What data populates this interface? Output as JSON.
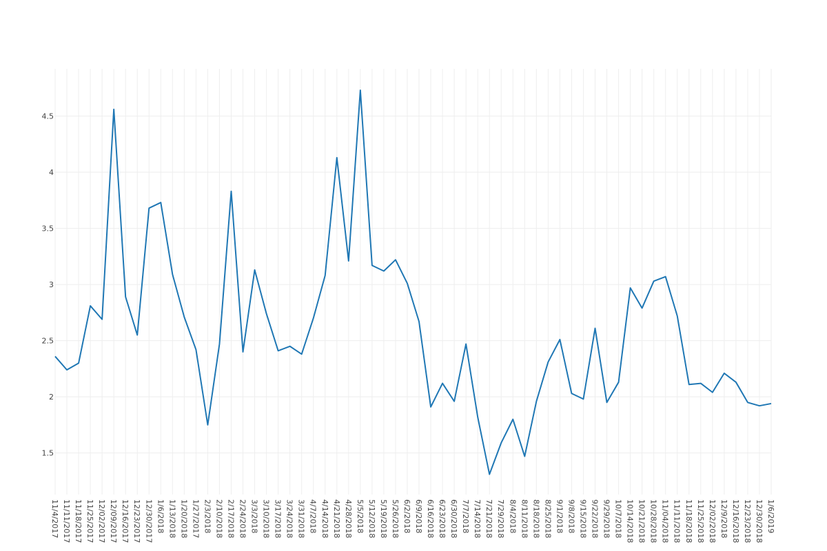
{
  "chart_data": {
    "type": "line",
    "categories": [
      "11/4/2017",
      "11/11/2017",
      "11/18/2017",
      "11/25/2017",
      "12/02/2017",
      "12/09/2017",
      "12/16/2017",
      "12/23/2017",
      "12/30/2017",
      "1/6/2018",
      "1/13/2018",
      "1/20/2018",
      "1/27/2017",
      "2/3/2018",
      "2/10/2018",
      "2/17/2018",
      "2/24/2018",
      "3/3/2018",
      "3/10/2018",
      "3/17/2018",
      "3/24/2018",
      "3/31/2018",
      "4/7/2018",
      "4/14/2018",
      "4/21/2018",
      "4/28/2018",
      "5/5/2018",
      "5/12/2018",
      "5/19/2018",
      "5/26/2018",
      "6/2/2018",
      "6/9/2018",
      "6/16/2018",
      "6/23/2018",
      "6/30/2018",
      "7/7/2018",
      "7/14/2018",
      "7/21/2018",
      "7/29/2018",
      "8/4/2018",
      "8/11/2018",
      "8/18/2018",
      "8/25/2018",
      "9/1/2018",
      "9/8/2018",
      "9/15/2018",
      "9/22/2018",
      "9/29/2018",
      "10/7/2018",
      "10/14/2018",
      "10/21/2018",
      "10/28/2018",
      "11/04/2018",
      "11/11/2018",
      "11/18/2018",
      "11/25/2018",
      "12/02/2018",
      "12/9/2018",
      "12/16/2018",
      "12/23/2018",
      "12/30/2018",
      "1/6/2019"
    ],
    "values": [
      2.36,
      2.24,
      2.3,
      2.81,
      2.69,
      4.56,
      2.89,
      2.55,
      3.68,
      3.73,
      3.09,
      2.71,
      2.42,
      1.75,
      2.47,
      3.83,
      2.4,
      3.13,
      2.74,
      2.41,
      2.45,
      2.38,
      2.7,
      3.08,
      4.13,
      3.21,
      4.73,
      3.17,
      3.12,
      3.22,
      3.01,
      2.67,
      1.91,
      2.12,
      1.96,
      2.47,
      1.82,
      1.31,
      1.59,
      1.8,
      1.47,
      1.96,
      2.31,
      2.51,
      2.03,
      1.98,
      2.61,
      1.95,
      2.13,
      2.97,
      2.79,
      3.03,
      3.07,
      2.72,
      2.11,
      2.12,
      2.04,
      2.21,
      2.13,
      1.95,
      1.92,
      1.94
    ],
    "color": "#1f77b4",
    "ylim": [
      1.13,
      4.92
    ],
    "yticks": [
      1.5,
      2,
      2.5,
      3,
      3.5,
      4,
      4.5
    ],
    "grid": true
  }
}
